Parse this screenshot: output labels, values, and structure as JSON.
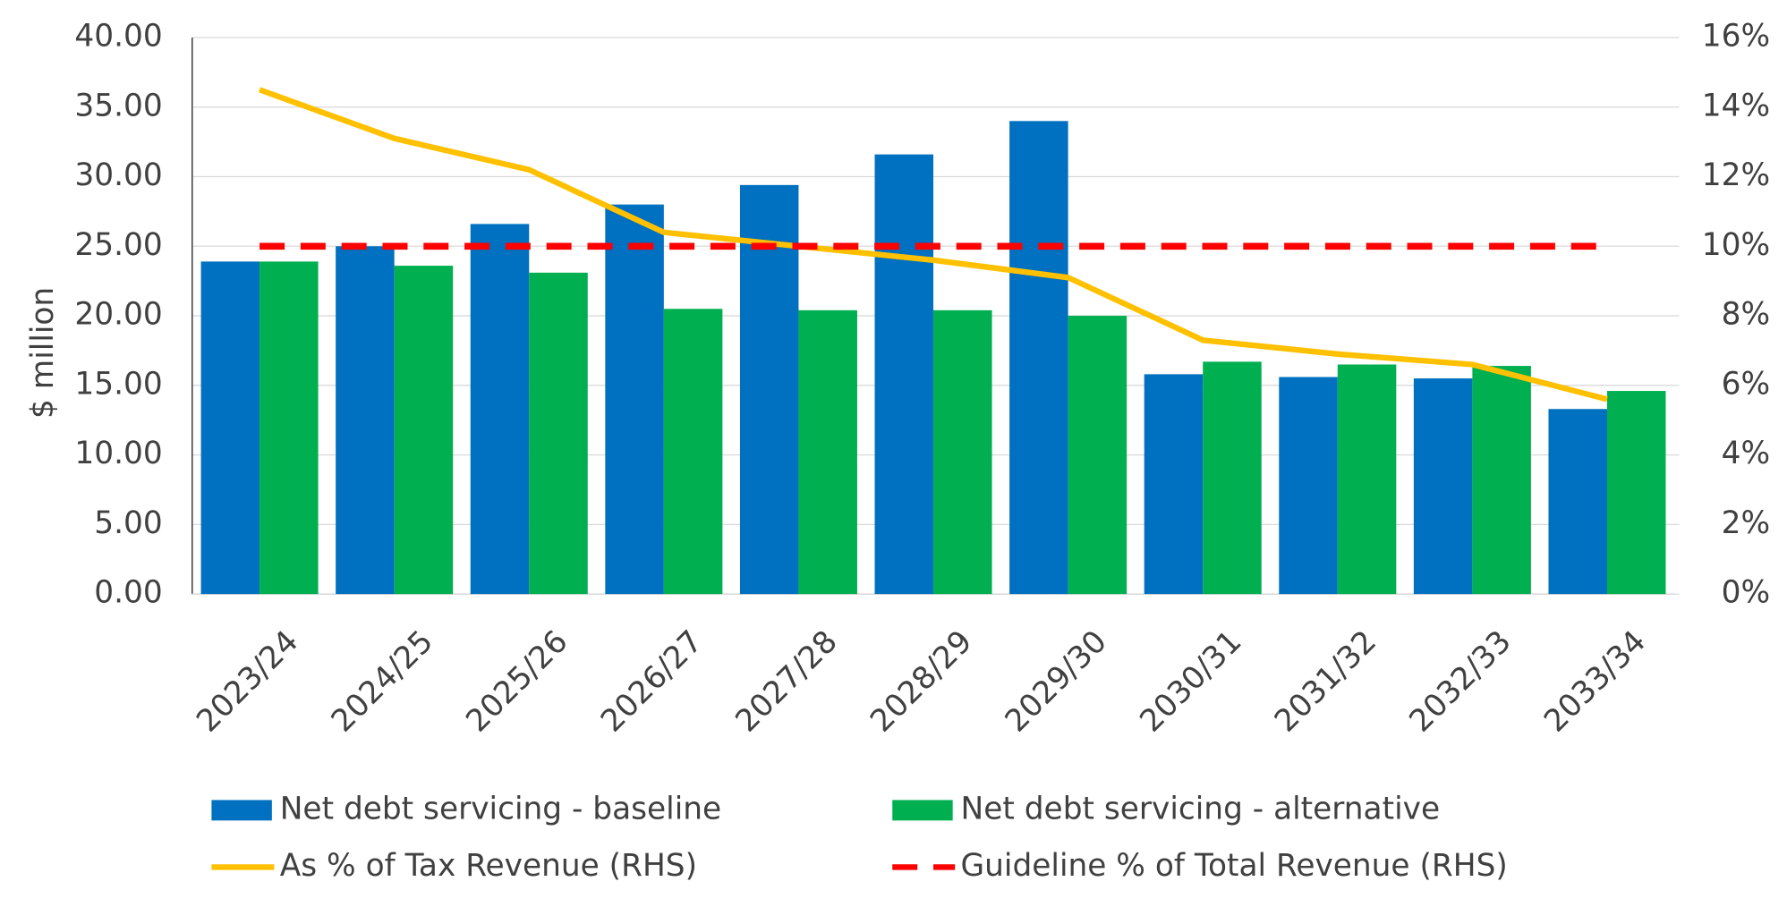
{
  "chart_data": {
    "type": "bar",
    "y_label": "$ million",
    "categories": [
      "2023/24",
      "2024/25",
      "2025/26",
      "2026/27",
      "2027/28",
      "2028/29",
      "2029/30",
      "2030/31",
      "2031/32",
      "2032/33",
      "2033/34"
    ],
    "series": [
      {
        "name": "Net debt servicing - baseline",
        "type": "bar",
        "color": "#0070c0",
        "values": [
          23.9,
          25.0,
          26.6,
          28.0,
          29.4,
          31.6,
          34.0,
          15.8,
          15.6,
          15.5,
          13.3
        ]
      },
      {
        "name": "Net debt servicing - alternative",
        "type": "bar",
        "color": "#00b050",
        "values": [
          23.9,
          23.6,
          23.1,
          20.5,
          20.4,
          20.4,
          20.0,
          16.7,
          16.5,
          16.4,
          14.6
        ]
      },
      {
        "name": "As % of Tax Revenue (RHS)",
        "type": "line",
        "axis": "y2",
        "color": "#ffc000",
        "line_style": "solid",
        "values": [
          14.5,
          13.1,
          12.2,
          10.4,
          10.0,
          9.6,
          9.1,
          7.3,
          6.9,
          6.6,
          5.6
        ]
      },
      {
        "name": "Guideline % of Total Revenue (RHS)",
        "type": "line",
        "axis": "y2",
        "color": "#ff0000",
        "line_style": "dashed",
        "values": [
          10,
          10,
          10,
          10,
          10,
          10,
          10,
          10,
          10,
          10,
          10
        ]
      }
    ],
    "ylim": [
      0,
      40
    ],
    "yticks": [
      {
        "value": 0,
        "label": "0.00"
      },
      {
        "value": 5,
        "label": "5.00"
      },
      {
        "value": 10,
        "label": "10.00"
      },
      {
        "value": 15,
        "label": "15.00"
      },
      {
        "value": 20,
        "label": "20.00"
      },
      {
        "value": 25,
        "label": "25.00"
      },
      {
        "value": 30,
        "label": "30.00"
      },
      {
        "value": 35,
        "label": "35.00"
      },
      {
        "value": 40,
        "label": "40.00"
      }
    ],
    "y2lim": [
      0,
      16
    ],
    "y2ticks": [
      {
        "value": 0,
        "label": "0%"
      },
      {
        "value": 2,
        "label": "2%"
      },
      {
        "value": 4,
        "label": "4%"
      },
      {
        "value": 6,
        "label": "6%"
      },
      {
        "value": 8,
        "label": "8%"
      },
      {
        "value": 10,
        "label": "10%"
      },
      {
        "value": 12,
        "label": "12%"
      },
      {
        "value": 14,
        "label": "14%"
      },
      {
        "value": 16,
        "label": "16%"
      }
    ],
    "grid": true,
    "legend": "bottom"
  }
}
